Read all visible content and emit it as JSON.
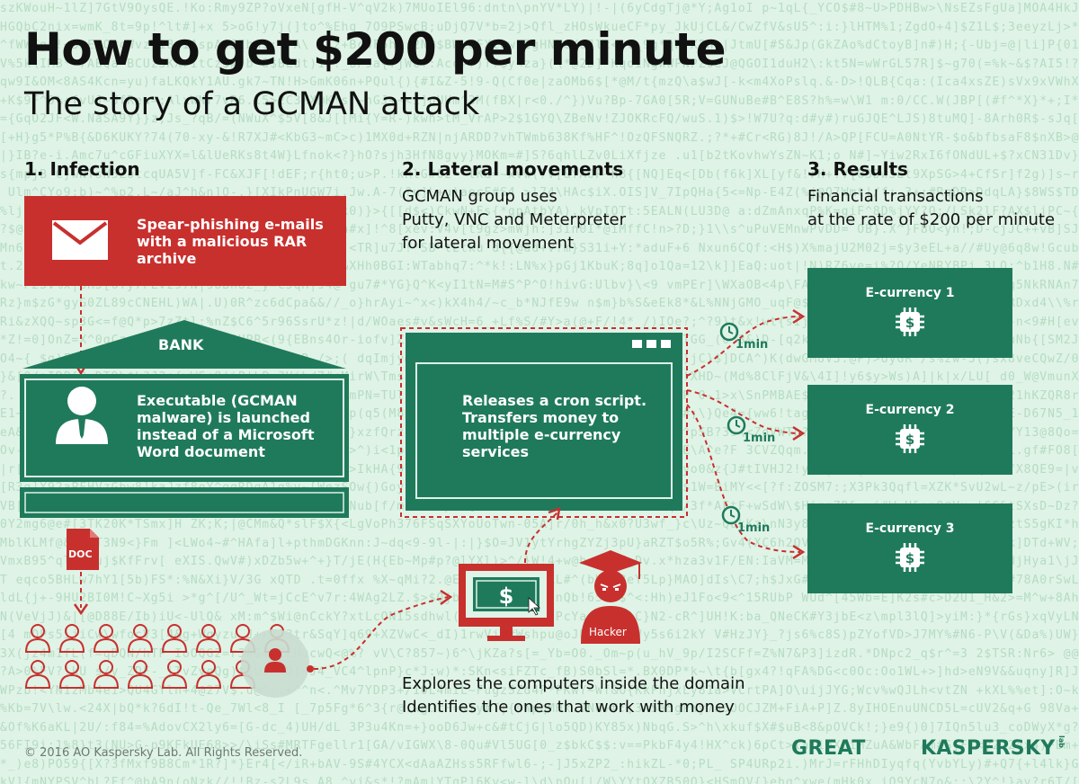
{
  "title": "How to get $200 per minute",
  "subtitle": "The story of a GCMAN attack",
  "sections": {
    "infection": {
      "heading": "1. Infection",
      "email_text": "Spear-phishing e-mails with a malicious RAR archive",
      "bank_label": "BANK",
      "bank_text": "Executable (GCMAN malware) is launched instead of a Microsoft Word document",
      "doc_label": "DOC"
    },
    "lateral": {
      "heading": "2. Lateral movements",
      "lines": [
        "GCMAN group uses",
        "Putty, VNC and Meterpreter",
        "for lateral movement"
      ],
      "window_text": "Releases a cron script. Transfers money to multiple e-currency services",
      "hacker_label": "Hacker",
      "bottom_lines": [
        "Explores the computers inside the domain",
        "Identifies the ones that work with money"
      ]
    },
    "results": {
      "heading": "3. Results",
      "lines": [
        "Financial transactions",
        "at the rate of $200 per minute"
      ],
      "currencies": [
        "E-currency 1",
        "E-currency 2",
        "E-currency 3"
      ],
      "interval": "1min"
    }
  },
  "footer": {
    "copyright": "© 2016 AO Kaspersky Lab. All Rights Reserved.",
    "logo_great": "GREAT",
    "logo_kaspersky": "KASPERSKY",
    "logo_lab": "lab"
  },
  "colors": {
    "background": "#dff3e6",
    "accent_red": "#c8302e",
    "accent_green": "#1f7a5c"
  }
}
